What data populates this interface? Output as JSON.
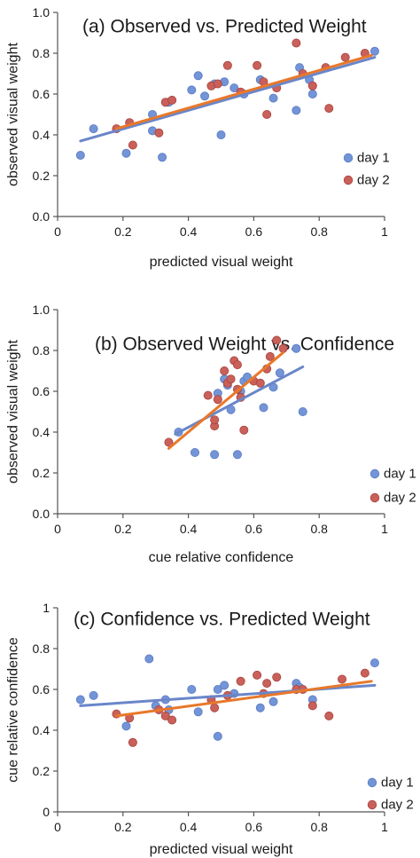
{
  "colors": {
    "day1_fill": "#7394d6",
    "day1_stroke": "#5a7bc4",
    "day2_fill": "#c9605a",
    "day2_stroke": "#a8423c",
    "day1_line": "#6a86c9",
    "day2_line": "#e8782a",
    "axis": "#555555"
  },
  "chart_data": [
    {
      "type": "scatter",
      "title": "(a) Observed vs. Predicted Weight",
      "xlabel": "predicted visual weight",
      "ylabel": "observed visual weight",
      "xlim": [
        0,
        1
      ],
      "ylim": [
        0,
        1
      ],
      "xticks": [
        "0",
        "0.2",
        "0.4",
        "0.6",
        "0.8",
        "1"
      ],
      "yticks": [
        "0.0",
        "0.2",
        "0.4",
        "0.6",
        "0.8",
        "1.0"
      ],
      "grid": false,
      "legend": [
        "day 1",
        "day 2"
      ],
      "series": [
        {
          "name": "day 1",
          "points": [
            [
              0.07,
              0.3
            ],
            [
              0.11,
              0.43
            ],
            [
              0.21,
              0.31
            ],
            [
              0.29,
              0.5
            ],
            [
              0.29,
              0.42
            ],
            [
              0.32,
              0.29
            ],
            [
              0.34,
              0.56
            ],
            [
              0.41,
              0.62
            ],
            [
              0.43,
              0.69
            ],
            [
              0.45,
              0.59
            ],
            [
              0.48,
              0.65
            ],
            [
              0.5,
              0.4
            ],
            [
              0.51,
              0.66
            ],
            [
              0.54,
              0.63
            ],
            [
              0.57,
              0.6
            ],
            [
              0.62,
              0.67
            ],
            [
              0.66,
              0.58
            ],
            [
              0.73,
              0.52
            ],
            [
              0.74,
              0.73
            ],
            [
              0.77,
              0.67
            ],
            [
              0.78,
              0.6
            ],
            [
              0.97,
              0.81
            ]
          ]
        },
        {
          "name": "day 2",
          "points": [
            [
              0.18,
              0.43
            ],
            [
              0.22,
              0.46
            ],
            [
              0.23,
              0.35
            ],
            [
              0.31,
              0.41
            ],
            [
              0.33,
              0.56
            ],
            [
              0.35,
              0.57
            ],
            [
              0.47,
              0.64
            ],
            [
              0.49,
              0.65
            ],
            [
              0.52,
              0.74
            ],
            [
              0.56,
              0.61
            ],
            [
              0.61,
              0.74
            ],
            [
              0.63,
              0.66
            ],
            [
              0.64,
              0.5
            ],
            [
              0.67,
              0.63
            ],
            [
              0.73,
              0.85
            ],
            [
              0.75,
              0.7
            ],
            [
              0.78,
              0.64
            ],
            [
              0.82,
              0.73
            ],
            [
              0.83,
              0.53
            ],
            [
              0.88,
              0.78
            ],
            [
              0.94,
              0.8
            ]
          ]
        }
      ],
      "fits": [
        {
          "name": "day 1",
          "from": [
            0.07,
            0.37
          ],
          "to": [
            0.97,
            0.78
          ]
        },
        {
          "name": "day 2",
          "from": [
            0.18,
            0.43
          ],
          "to": [
            0.96,
            0.79
          ]
        }
      ]
    },
    {
      "type": "scatter",
      "title": "(b) Observed Weight vs. Confidence",
      "xlabel": "cue relative confidence",
      "ylabel": "observed visual weight",
      "xlim": [
        0,
        1
      ],
      "ylim": [
        0,
        1
      ],
      "xticks": [
        "0",
        "0.2",
        "0.4",
        "0.6",
        "0.8",
        "1"
      ],
      "yticks": [
        "0.0",
        "0.2",
        "0.4",
        "0.6",
        "0.8",
        "1.0"
      ],
      "grid": false,
      "legend": [
        "day 1",
        "day 2"
      ],
      "series": [
        {
          "name": "day 1",
          "points": [
            [
              0.37,
              0.4
            ],
            [
              0.42,
              0.3
            ],
            [
              0.48,
              0.29
            ],
            [
              0.49,
              0.59
            ],
            [
              0.51,
              0.66
            ],
            [
              0.52,
              0.63
            ],
            [
              0.53,
              0.51
            ],
            [
              0.55,
              0.29
            ],
            [
              0.56,
              0.6
            ],
            [
              0.57,
              0.65
            ],
            [
              0.58,
              0.67
            ],
            [
              0.63,
              0.52
            ],
            [
              0.66,
              0.62
            ],
            [
              0.68,
              0.69
            ],
            [
              0.73,
              0.81
            ],
            [
              0.75,
              0.5
            ]
          ]
        },
        {
          "name": "day 2",
          "points": [
            [
              0.34,
              0.35
            ],
            [
              0.46,
              0.58
            ],
            [
              0.48,
              0.43
            ],
            [
              0.48,
              0.46
            ],
            [
              0.49,
              0.56
            ],
            [
              0.51,
              0.7
            ],
            [
              0.52,
              0.64
            ],
            [
              0.53,
              0.66
            ],
            [
              0.54,
              0.75
            ],
            [
              0.55,
              0.73
            ],
            [
              0.55,
              0.61
            ],
            [
              0.56,
              0.57
            ],
            [
              0.57,
              0.41
            ],
            [
              0.6,
              0.65
            ],
            [
              0.62,
              0.64
            ],
            [
              0.64,
              0.71
            ],
            [
              0.65,
              0.77
            ],
            [
              0.67,
              0.85
            ],
            [
              0.69,
              0.81
            ]
          ]
        }
      ],
      "fits": [
        {
          "name": "day 1",
          "from": [
            0.36,
            0.39
          ],
          "to": [
            0.75,
            0.72
          ]
        },
        {
          "name": "day 2",
          "from": [
            0.34,
            0.32
          ],
          "to": [
            0.69,
            0.79
          ]
        }
      ]
    },
    {
      "type": "scatter",
      "title": "(c) Confidence vs. Predicted Weight",
      "xlabel": "predicted visual weight",
      "ylabel": "cue relative confidence",
      "xlim": [
        0,
        1
      ],
      "ylim": [
        0,
        1
      ],
      "xticks": [
        "0",
        "0.2",
        "0.4",
        "0.6",
        "0.8",
        "1"
      ],
      "yticks": [
        "0",
        "0.2",
        "0.4",
        "0.6",
        "0.8",
        "1"
      ],
      "grid": false,
      "legend": [
        "day 1",
        "day 2"
      ],
      "series": [
        {
          "name": "day 1",
          "points": [
            [
              0.07,
              0.55
            ],
            [
              0.11,
              0.57
            ],
            [
              0.21,
              0.42
            ],
            [
              0.28,
              0.75
            ],
            [
              0.3,
              0.52
            ],
            [
              0.33,
              0.55
            ],
            [
              0.34,
              0.5
            ],
            [
              0.41,
              0.6
            ],
            [
              0.43,
              0.49
            ],
            [
              0.49,
              0.37
            ],
            [
              0.49,
              0.6
            ],
            [
              0.51,
              0.62
            ],
            [
              0.54,
              0.58
            ],
            [
              0.62,
              0.51
            ],
            [
              0.66,
              0.54
            ],
            [
              0.73,
              0.63
            ],
            [
              0.74,
              0.61
            ],
            [
              0.78,
              0.55
            ],
            [
              0.97,
              0.73
            ]
          ]
        },
        {
          "name": "day 2",
          "points": [
            [
              0.18,
              0.48
            ],
            [
              0.22,
              0.46
            ],
            [
              0.23,
              0.34
            ],
            [
              0.31,
              0.5
            ],
            [
              0.33,
              0.47
            ],
            [
              0.35,
              0.45
            ],
            [
              0.47,
              0.55
            ],
            [
              0.48,
              0.51
            ],
            [
              0.52,
              0.57
            ],
            [
              0.56,
              0.64
            ],
            [
              0.61,
              0.67
            ],
            [
              0.63,
              0.58
            ],
            [
              0.64,
              0.63
            ],
            [
              0.67,
              0.66
            ],
            [
              0.73,
              0.6
            ],
            [
              0.75,
              0.6
            ],
            [
              0.78,
              0.52
            ],
            [
              0.83,
              0.47
            ],
            [
              0.87,
              0.65
            ],
            [
              0.94,
              0.68
            ]
          ]
        }
      ],
      "fits": [
        {
          "name": "day 1",
          "from": [
            0.07,
            0.52
          ],
          "to": [
            0.97,
            0.62
          ]
        },
        {
          "name": "day 2",
          "from": [
            0.18,
            0.47
          ],
          "to": [
            0.96,
            0.64
          ]
        }
      ]
    }
  ]
}
